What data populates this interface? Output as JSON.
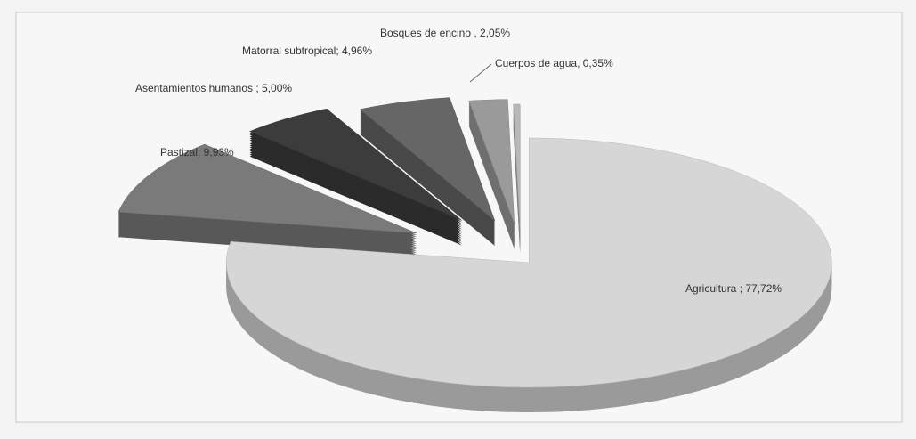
{
  "chart_data": {
    "type": "pie3d",
    "values": [
      77.72,
      9.93,
      5.0,
      4.96,
      2.05,
      0.35
    ],
    "value_labels": [
      "Agricultura ; 77,72%",
      "Pastizal; 9,93%",
      "Asentamientos humanos ; 5,00%",
      "Matorral subtropical; 4,96%",
      "Bosques de encino , 2,05%",
      "Cuerpos de agua, 0,35%"
    ],
    "colors": [
      "#d6d6d6",
      "#7a7a7a",
      "#3c3c3c",
      "#666666",
      "#9a9a9a",
      "#b8b8b8"
    ]
  }
}
